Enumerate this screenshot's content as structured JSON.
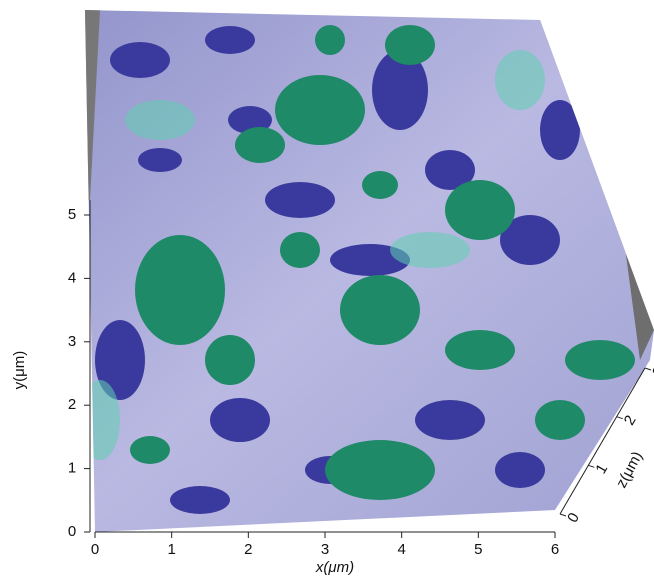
{
  "axes": {
    "x": {
      "label": "x(μm)",
      "ticks": [
        0,
        1,
        2,
        3,
        4,
        5,
        6
      ]
    },
    "y": {
      "label": "y(μm)",
      "ticks": [
        0,
        1,
        2,
        3,
        4,
        5
      ]
    },
    "z": {
      "label": "z(μm)",
      "ticks": [
        0,
        1,
        2,
        3
      ]
    }
  }
}
